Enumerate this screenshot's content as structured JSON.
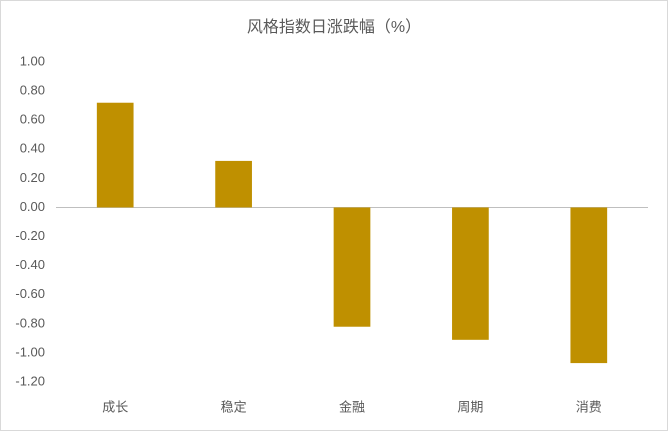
{
  "chart_data": {
    "type": "bar",
    "title": "风格指数日涨跌幅（%）",
    "categories": [
      "成长",
      "稳定",
      "金融",
      "周期",
      "消费"
    ],
    "values": [
      0.72,
      0.32,
      -0.82,
      -0.91,
      -1.07
    ],
    "color": "#bf9000",
    "ylim": [
      -1.2,
      1.0
    ],
    "yticks": [
      {
        "value": 1.0,
        "label": "1.00"
      },
      {
        "value": 0.8,
        "label": "0.80"
      },
      {
        "value": 0.6,
        "label": "0.60"
      },
      {
        "value": 0.4,
        "label": "0.40"
      },
      {
        "value": 0.2,
        "label": "0.20"
      },
      {
        "value": 0,
        "label": "0.00"
      },
      {
        "value": -0.2,
        "label": "-0.20"
      },
      {
        "value": -0.4,
        "label": "-0.40"
      },
      {
        "value": -0.6,
        "label": "-0.60"
      },
      {
        "value": -0.8,
        "label": "-0.80"
      },
      {
        "value": -1.0,
        "label": "-1.00"
      },
      {
        "value": -1.2,
        "label": "-1.20"
      }
    ],
    "grid": false
  }
}
